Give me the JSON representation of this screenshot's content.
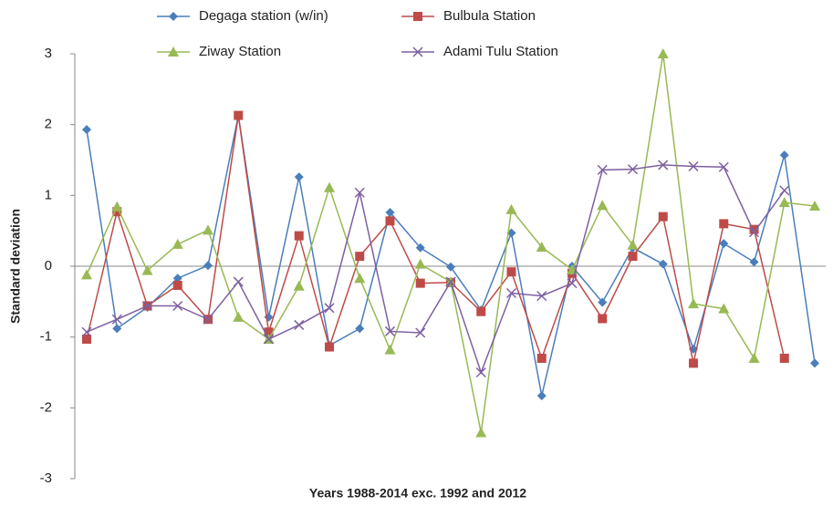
{
  "chart_data": {
    "type": "line",
    "x_label": "Years 1988-2014 exc. 1992 and 2012",
    "y_label": "Standard deviation",
    "categories": [
      null,
      null,
      null,
      null,
      null,
      null,
      null,
      null,
      null,
      null,
      null,
      null,
      null,
      null,
      null,
      null,
      null,
      null,
      null,
      null,
      null,
      null,
      null,
      null,
      null
    ],
    "ylim": [
      -3,
      3
    ],
    "yticks": [
      -3,
      -2,
      -1,
      0,
      1,
      2,
      3
    ],
    "series": [
      {
        "name": "Degaga station  (w/in)",
        "color": "#4a7ebb",
        "marker": "diamond",
        "values": [
          1.93,
          -0.88,
          -0.58,
          -0.17,
          0.01,
          2.13,
          -0.72,
          1.26,
          -1.12,
          -0.88,
          0.76,
          0.26,
          -0.01,
          -0.62,
          0.47,
          -1.83,
          0.0,
          -0.51,
          0.26,
          0.03,
          -1.17,
          0.32,
          0.06,
          1.57,
          -1.37
        ]
      },
      {
        "name": "Bulbula Station",
        "color": "#be4b48",
        "marker": "square",
        "values": [
          -1.03,
          0.77,
          -0.56,
          -0.27,
          -0.75,
          2.13,
          -0.93,
          0.43,
          -1.14,
          0.14,
          0.64,
          -0.24,
          -0.23,
          -0.64,
          -0.08,
          -1.3,
          -0.1,
          -0.74,
          0.14,
          0.7,
          -1.37,
          0.6,
          0.52,
          -1.3,
          null
        ]
      },
      {
        "name": "Ziway Station",
        "color": "#98b954",
        "marker": "triangle",
        "values": [
          -0.12,
          0.84,
          -0.06,
          0.31,
          0.51,
          -0.72,
          -1.03,
          -0.28,
          1.11,
          -0.17,
          -1.18,
          0.03,
          -0.22,
          -2.35,
          0.8,
          0.27,
          -0.05,
          0.86,
          0.3,
          3.0,
          -0.53,
          -0.6,
          -1.3,
          0.9,
          0.85
        ]
      },
      {
        "name": "Adami Tulu Station",
        "color": "#7d60a0",
        "marker": "x",
        "values": [
          -0.93,
          -0.75,
          -0.56,
          -0.56,
          -0.75,
          -0.22,
          -1.03,
          -0.83,
          -0.59,
          1.04,
          -0.92,
          -0.94,
          -0.22,
          -1.5,
          -0.38,
          -0.42,
          -0.24,
          1.36,
          1.37,
          1.43,
          1.41,
          1.4,
          0.48,
          1.07,
          null
        ]
      }
    ]
  }
}
